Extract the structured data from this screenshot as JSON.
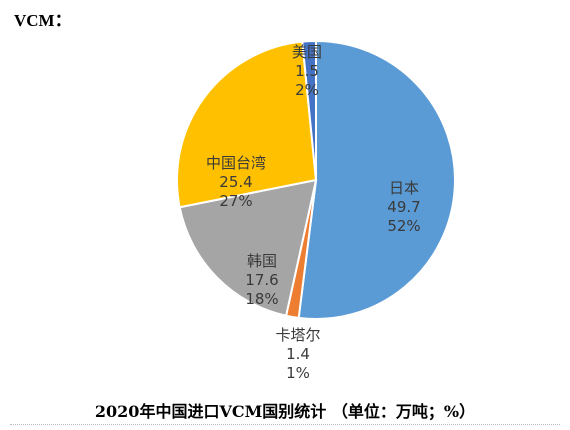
{
  "header": {
    "label": "VCM："
  },
  "caption": "2020年中国进口VCM国别统计 （单位：万吨；%）",
  "chart_data": {
    "type": "pie",
    "title": "2020年中国进口VCM国别统计 （单位：万吨；%）",
    "unit": "万吨",
    "slices": [
      {
        "name": "日本",
        "value": 49.7,
        "percent": "52%",
        "color": "#5b9bd5"
      },
      {
        "name": "卡塔尔",
        "value": 1.4,
        "percent": "1%",
        "color": "#ed7d31"
      },
      {
        "name": "韩国",
        "value": 17.6,
        "percent": "18%",
        "color": "#a5a5a5"
      },
      {
        "name": "中国台湾",
        "value": 25.4,
        "percent": "27%",
        "color": "#ffc000"
      },
      {
        "name": "美国",
        "value": 1.5,
        "percent": "2%",
        "color": "#4472c4"
      }
    ]
  }
}
